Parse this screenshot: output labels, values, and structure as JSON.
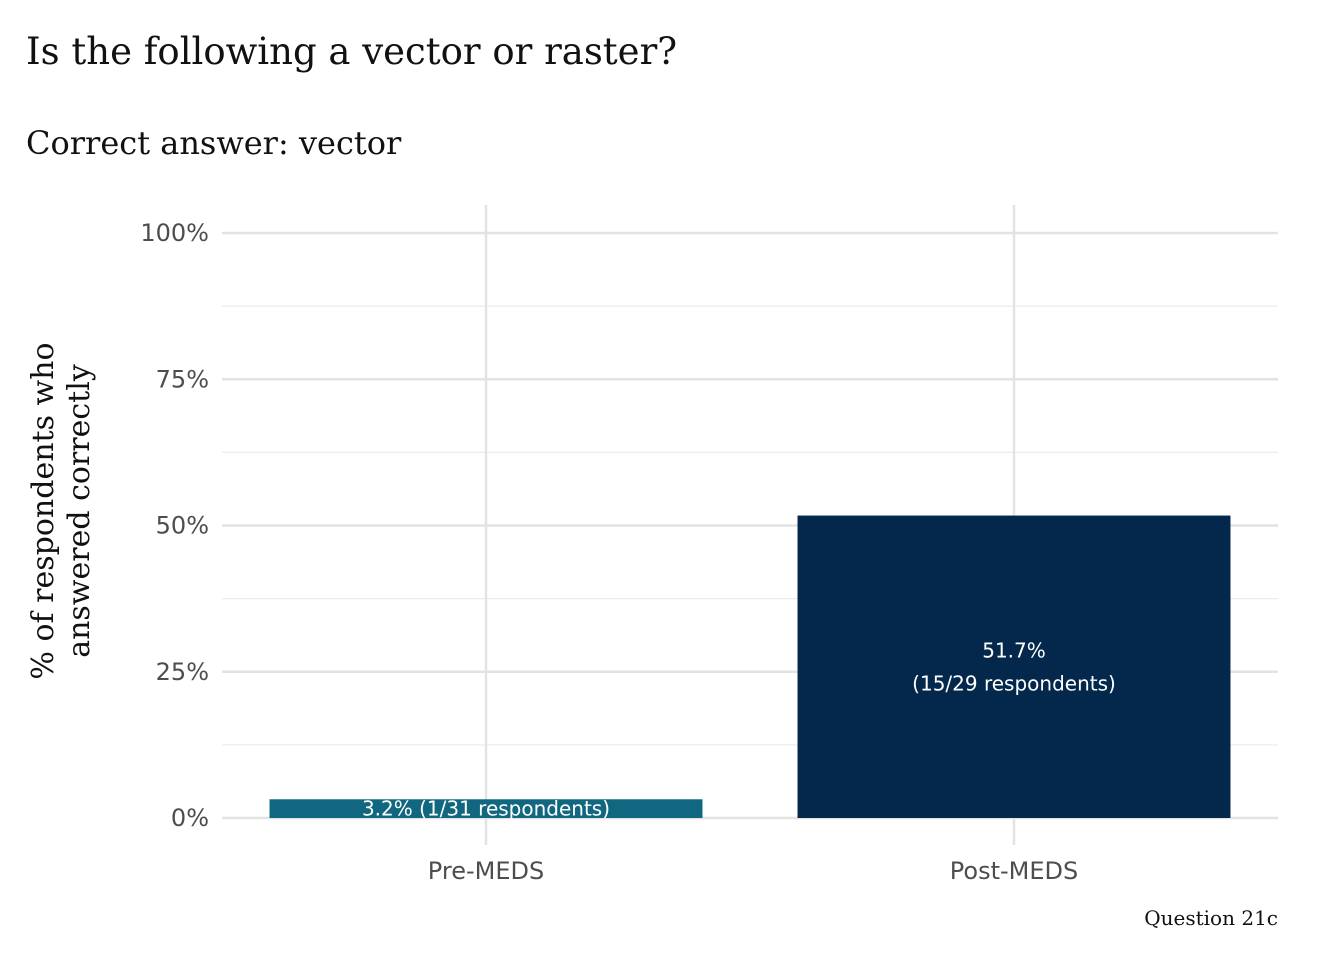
{
  "chart_data": {
    "type": "bar",
    "title": "Is the following a vector or raster?",
    "subtitle": "Correct answer: vector",
    "ylabel": "% of respondents who\nanswered correctly",
    "xlabel": "",
    "caption": "Question 21c",
    "categories": [
      "Pre-MEDS",
      "Post-MEDS"
    ],
    "values": [
      3.2,
      51.7
    ],
    "bar_colors": [
      "#10677f",
      "#03284b"
    ],
    "data_labels": [
      [
        "3.2% (1/31 respondents)"
      ],
      [
        "51.7%",
        "(15/29 respondents)"
      ]
    ],
    "ylim": [
      0,
      100
    ],
    "y_ticks": [
      0,
      25,
      50,
      75,
      100
    ],
    "y_tick_labels": [
      "0%",
      "25%",
      "50%",
      "75%",
      "100%"
    ],
    "grid": true,
    "legend": "none"
  }
}
